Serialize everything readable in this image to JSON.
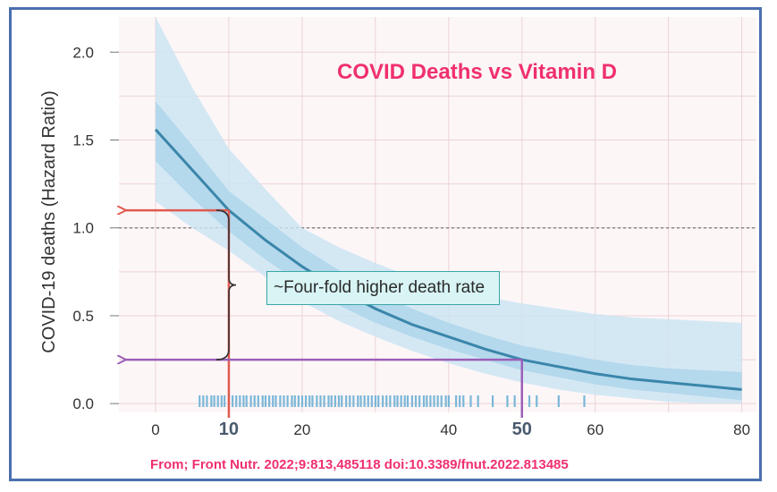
{
  "chart_data": {
    "type": "line",
    "title": "COVID Deaths vs Vitamin D",
    "xlabel": "",
    "ylabel": "COVID-19 deaths (Hazard Ratio)",
    "xlim": [
      -5,
      82
    ],
    "ylim": [
      -0.05,
      2.2
    ],
    "x_ticks": [
      0,
      20,
      40,
      60,
      80
    ],
    "y_ticks": [
      0.0,
      0.5,
      1.0,
      1.5,
      2.0
    ],
    "y_tick_labels": [
      "0.0",
      "0.5",
      "1.0",
      "1.5",
      "2.0"
    ],
    "reference_line_y": 1.0,
    "series": [
      {
        "name": "Hazard ratio",
        "x": [
          0,
          5,
          10,
          15,
          20,
          25,
          30,
          35,
          40,
          45,
          50,
          55,
          60,
          65,
          70,
          75,
          80
        ],
        "y": [
          1.56,
          1.33,
          1.1,
          0.93,
          0.78,
          0.65,
          0.54,
          0.45,
          0.38,
          0.31,
          0.25,
          0.21,
          0.17,
          0.14,
          0.12,
          0.1,
          0.08
        ],
        "ci_inner_low": [
          1.38,
          1.17,
          0.98,
          0.82,
          0.68,
          0.56,
          0.46,
          0.38,
          0.31,
          0.25,
          0.19,
          0.15,
          0.11,
          0.08,
          0.06,
          0.04,
          0.02
        ],
        "ci_inner_high": [
          1.72,
          1.47,
          1.21,
          1.05,
          0.89,
          0.76,
          0.64,
          0.54,
          0.46,
          0.39,
          0.33,
          0.29,
          0.25,
          0.22,
          0.2,
          0.19,
          0.18
        ],
        "ci_outer_low": [
          1.15,
          1.0,
          0.87,
          0.72,
          0.58,
          0.47,
          0.38,
          0.3,
          0.23,
          0.17,
          0.12,
          0.08,
          0.05,
          0.03,
          0.01,
          0.0,
          0.0
        ],
        "ci_outer_high": [
          2.2,
          1.8,
          1.45,
          1.22,
          1.0,
          0.89,
          0.8,
          0.72,
          0.66,
          0.61,
          0.57,
          0.54,
          0.51,
          0.49,
          0.48,
          0.47,
          0.46
        ]
      }
    ],
    "rug_x": [
      6,
      6.5,
      7,
      7.6,
      8,
      8.5,
      9,
      9.4,
      10,
      10.5,
      11,
      11.5,
      12,
      12.4,
      13,
      13.5,
      14,
      14.6,
      15,
      15.5,
      16,
      16.4,
      17,
      17.5,
      18,
      18.6,
      19,
      19.5,
      20,
      20.5,
      21,
      21.4,
      22,
      22.5,
      23,
      23.6,
      24,
      24.5,
      25,
      25.4,
      26,
      26.5,
      27,
      27.6,
      28,
      28.5,
      29,
      29.5,
      30,
      30.4,
      31,
      31.5,
      32,
      32.6,
      33,
      33.5,
      34,
      34.4,
      35,
      35.5,
      36,
      36.6,
      37,
      37.5,
      38,
      38.5,
      39,
      39.6,
      40,
      41,
      41.5,
      42,
      43,
      44,
      46,
      48,
      49,
      51,
      52,
      55,
      58.5
    ],
    "markers": [
      {
        "x": 10,
        "y": 1.1,
        "label": "10",
        "color": "#e05a50"
      },
      {
        "x": 50,
        "y": 0.25,
        "label": "50",
        "color": "#9b5fb8"
      }
    ],
    "annotation": "~Four-fold higher death rate",
    "source": "From; Front Nutr. 2022;9:813,485118 doi:10.3389/fnut.2022.813485"
  },
  "colors": {
    "line": "#3a86aa",
    "band_outer": "#c9e5f3",
    "band_inner": "#a9d3ea",
    "rug": "#7ab7d8",
    "grid": "#ead3d7",
    "plot_bg": "#fdf6f7",
    "title": "#f0306e",
    "frame": "#4a6fae"
  }
}
